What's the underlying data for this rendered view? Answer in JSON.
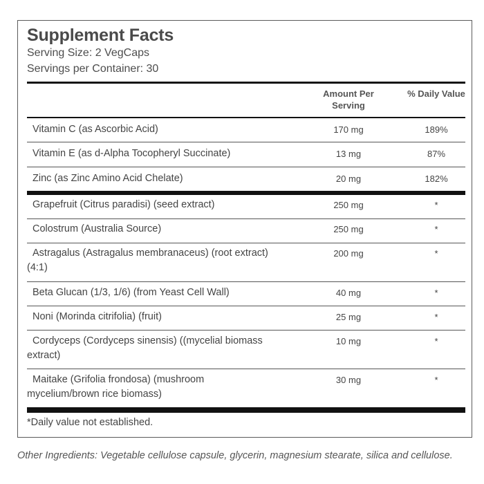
{
  "label": {
    "title": "Supplement Facts",
    "serving_size": "Serving Size: 2 VegCaps",
    "servings_per_container": "Servings per Container: 30",
    "col_amount": "Amount Per Serving",
    "col_dv": "% Daily Value",
    "vitamins": [
      {
        "name": "Vitamin C (as Ascorbic Acid)",
        "amount": "170 mg",
        "dv": "189%"
      },
      {
        "name": "Vitamin E (as d-Alpha Tocopheryl Succinate)",
        "amount": "13 mg",
        "dv": "87%"
      },
      {
        "name": "Zinc (as Zinc Amino Acid Chelate)",
        "amount": "20 mg",
        "dv": "182%"
      }
    ],
    "ingredients": [
      {
        "name": "Grapefruit (Citrus paradisi) (seed extract)",
        "amount": "250 mg",
        "dv": "*"
      },
      {
        "name": "Colostrum (Australia Source)",
        "amount": "250 mg",
        "dv": "*"
      },
      {
        "name": "Astragalus (Astragalus membranaceus) (root extract) (4:1)",
        "amount": "200 mg",
        "dv": "*"
      },
      {
        "name": "Beta Glucan (1/3, 1/6) (from Yeast Cell Wall)",
        "amount": "40 mg",
        "dv": "*"
      },
      {
        "name": "Noni (Morinda citrifolia) (fruit)",
        "amount": "25 mg",
        "dv": "*"
      },
      {
        "name": "Cordyceps (Cordyceps sinensis) ((mycelial biomass extract)",
        "amount": "10 mg",
        "dv": "*"
      },
      {
        "name": "Maitake (Grifolia frondosa) (mushroom mycelium/brown rice biomass)",
        "amount": "30 mg",
        "dv": "*"
      }
    ],
    "footnote": "*Daily value not established."
  },
  "other_ingredients": "Other Ingredients: Vegetable cellulose capsule, glycerin, magnesium stearate, silica and cellulose."
}
